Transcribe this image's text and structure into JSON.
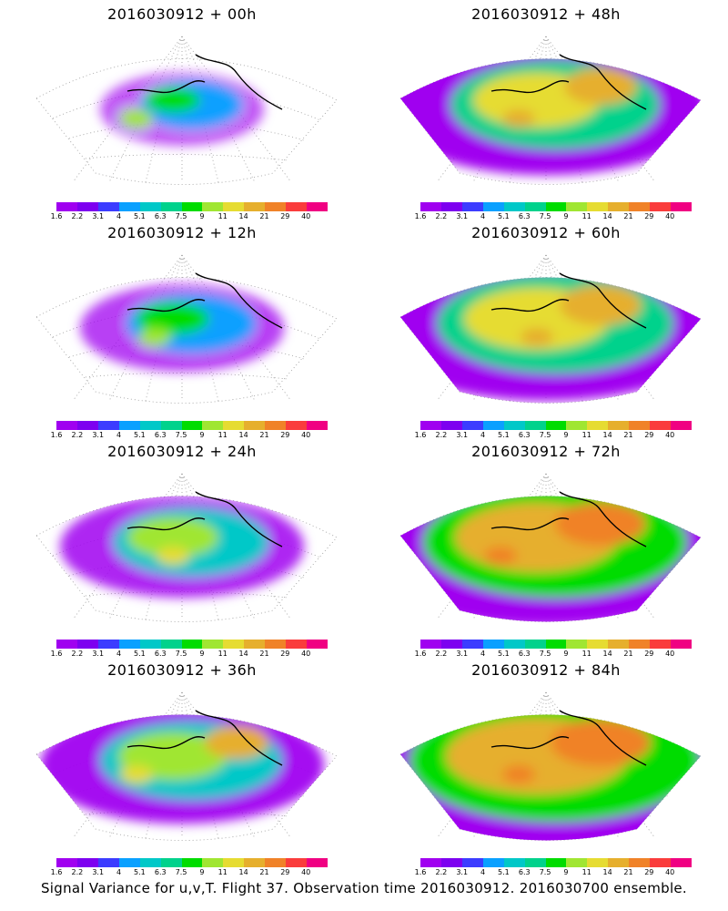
{
  "colorbar": {
    "labels": [
      "1.6",
      "2.2",
      "3.1",
      "4",
      "5.1",
      "6.3",
      "7.5",
      "9",
      "11",
      "14",
      "21",
      "29",
      "40"
    ],
    "colors": [
      "#a000f0",
      "#7d00f0",
      "#3c3cff",
      "#0aa0ff",
      "#00c8c8",
      "#00d28c",
      "#00dc00",
      "#a0e632",
      "#e6dc32",
      "#e6af2d",
      "#f08228",
      "#fa3c3c",
      "#f00082"
    ]
  },
  "panels": [
    {
      "title": "2016030912 + 00h",
      "level": 0
    },
    {
      "title": "2016030912 + 48h",
      "level": 4
    },
    {
      "title": "2016030912 + 12h",
      "level": 1
    },
    {
      "title": "2016030912 + 60h",
      "level": 5
    },
    {
      "title": "2016030912 + 24h",
      "level": 2
    },
    {
      "title": "2016030912 + 72h",
      "level": 6
    },
    {
      "title": "2016030912 + 36h",
      "level": 3
    },
    {
      "title": "2016030912 + 84h",
      "level": 7
    }
  ],
  "caption": "Signal Variance for u,v,T. Flight 37. Observation time 2016030912. 2016030700 ensemble."
}
